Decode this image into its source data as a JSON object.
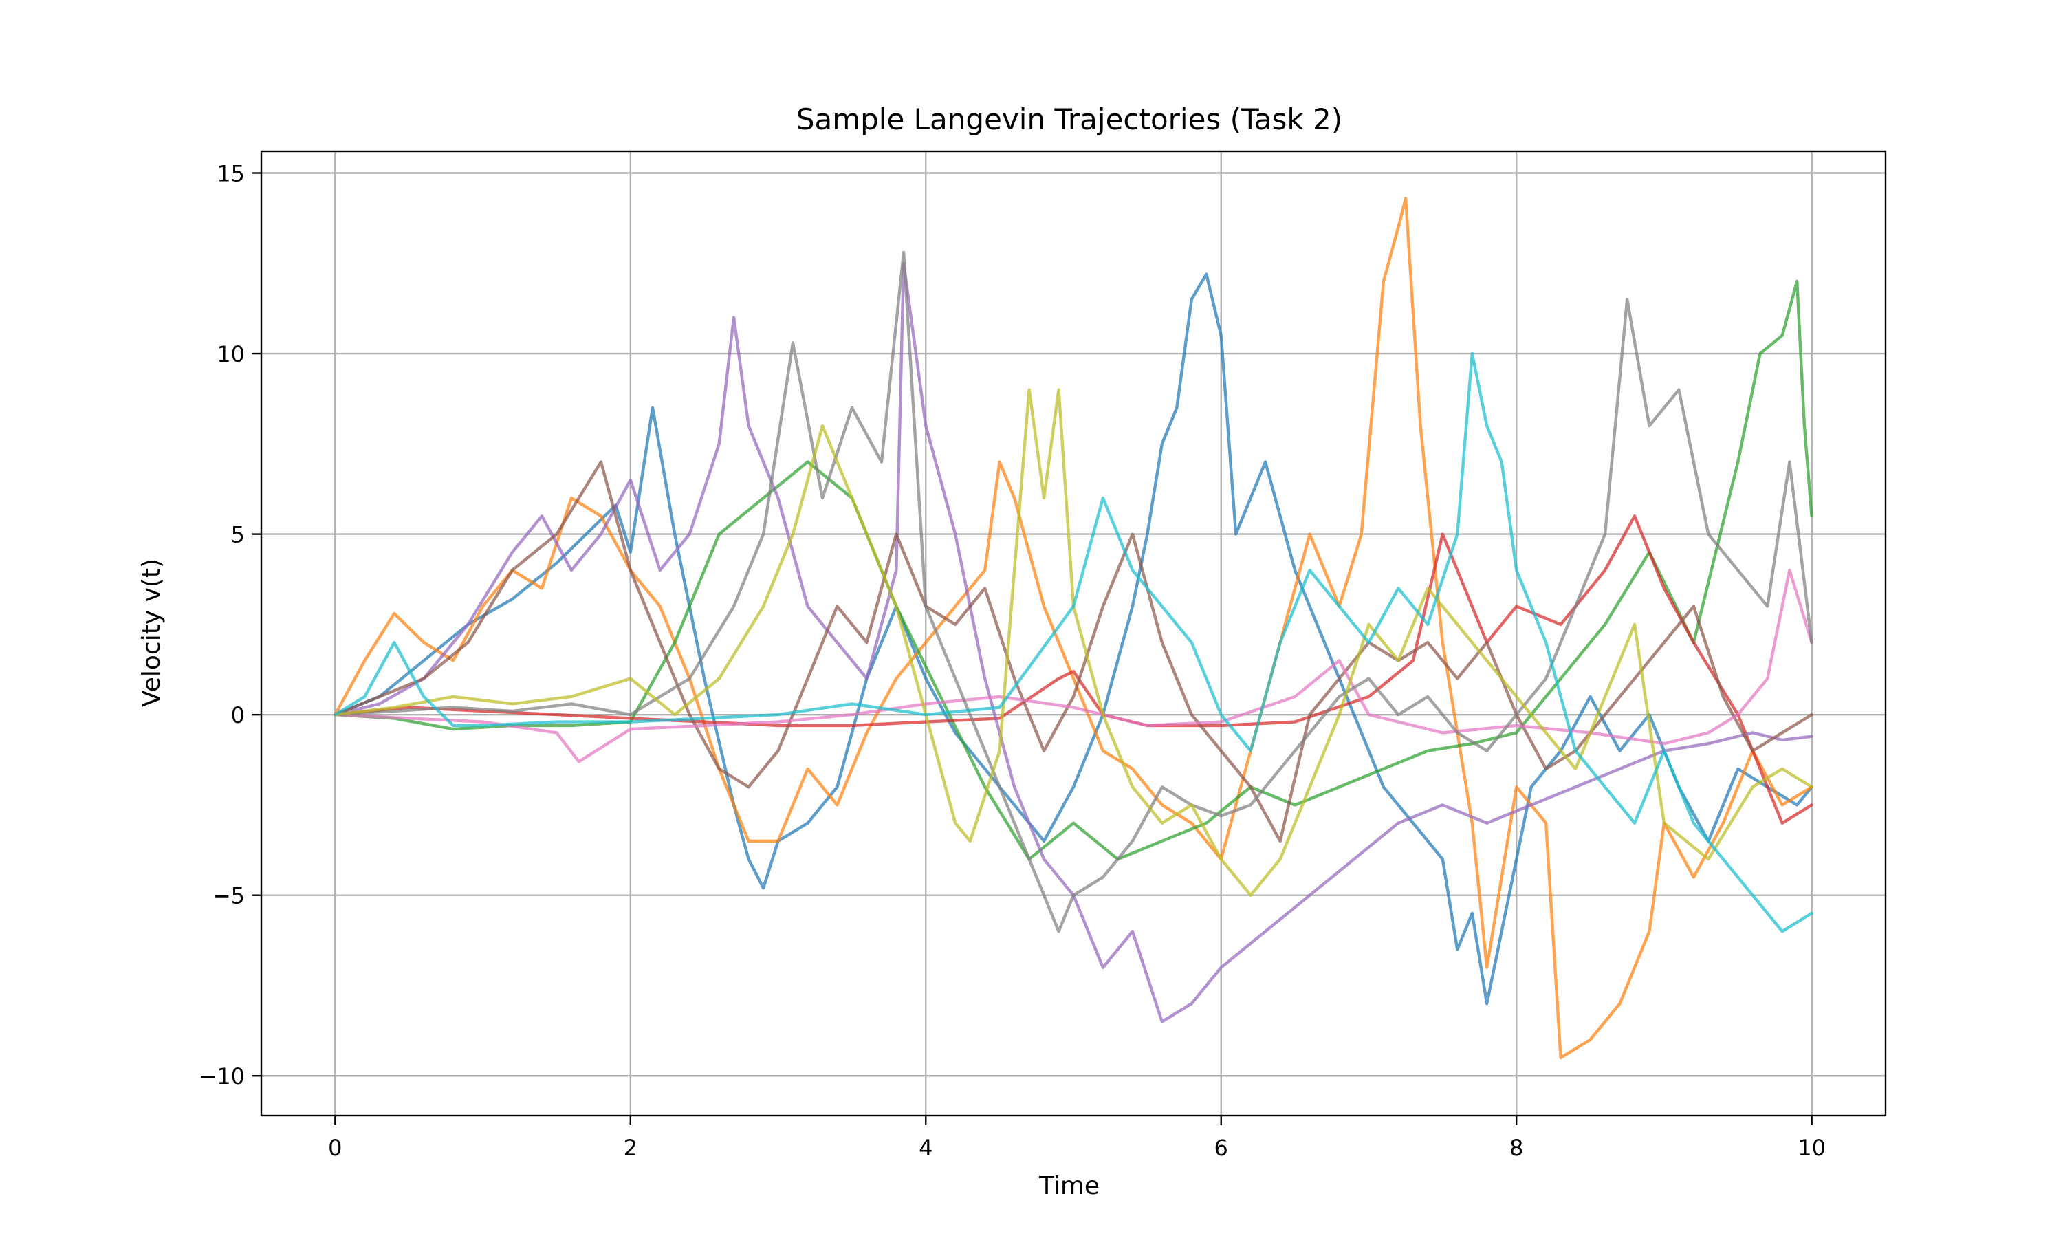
{
  "chart_data": {
    "type": "line",
    "title": "Sample Langevin Trajectories (Task 2)",
    "xlabel": "Time",
    "ylabel": "Velocity v(t)",
    "xlim": [
      -0.5,
      10.5
    ],
    "ylim": [
      -11.1,
      15.6
    ],
    "xticks": [
      0,
      2,
      4,
      6,
      8,
      10
    ],
    "yticks": [
      -10,
      -5,
      0,
      5,
      10,
      15
    ],
    "xtick_labels": [
      "0",
      "2",
      "4",
      "6",
      "8",
      "10"
    ],
    "ytick_labels": [
      "−10",
      "−5",
      "0",
      "5",
      "10",
      "15"
    ],
    "grid": true,
    "legend": false,
    "series": [
      {
        "color": "#1f77b4",
        "x": [
          0,
          0.3,
          0.6,
          0.9,
          1.2,
          1.5,
          1.7,
          1.9,
          2.0,
          2.15,
          2.3,
          2.5,
          2.7,
          2.8,
          2.9,
          3.0,
          3.2,
          3.4,
          3.6,
          3.8,
          4.0,
          4.2,
          4.4,
          4.6,
          4.8,
          5.0,
          5.2,
          5.4,
          5.5,
          5.6,
          5.7,
          5.8,
          5.9,
          6.0,
          6.1,
          6.3,
          6.5,
          6.7,
          6.9,
          7.1,
          7.3,
          7.5,
          7.6,
          7.7,
          7.8,
          7.9,
          8.0,
          8.1,
          8.3,
          8.5,
          8.7,
          8.9,
          9.1,
          9.3,
          9.5,
          9.7,
          9.9,
          10.0
        ],
        "y": [
          0,
          0.5,
          1.5,
          2.5,
          3.2,
          4.2,
          5.0,
          5.8,
          4.5,
          8.5,
          5.0,
          1.0,
          -2.5,
          -4.0,
          -4.8,
          -3.5,
          -3.0,
          -2.0,
          1.0,
          3.0,
          1.0,
          -0.5,
          -1.5,
          -2.5,
          -3.5,
          -2.0,
          0.0,
          3.0,
          5.0,
          7.5,
          8.5,
          11.5,
          12.2,
          10.5,
          5.0,
          7.0,
          4.0,
          2.0,
          0.0,
          -2.0,
          -3.0,
          -4.0,
          -6.5,
          -5.5,
          -8.0,
          -6.0,
          -4.0,
          -2.0,
          -1.0,
          0.5,
          -1.0,
          0.0,
          -2.0,
          -3.5,
          -1.5,
          -2.0,
          -2.5,
          -2.0
        ]
      },
      {
        "color": "#ff7f0e",
        "x": [
          0,
          0.2,
          0.4,
          0.6,
          0.8,
          1.0,
          1.2,
          1.4,
          1.6,
          1.8,
          2.0,
          2.2,
          2.4,
          2.6,
          2.8,
          3.0,
          3.2,
          3.4,
          3.6,
          3.8,
          4.0,
          4.2,
          4.4,
          4.5,
          4.6,
          4.8,
          5.0,
          5.2,
          5.4,
          5.6,
          5.8,
          6.0,
          6.2,
          6.4,
          6.6,
          6.8,
          6.95,
          7.1,
          7.2,
          7.25,
          7.35,
          7.5,
          7.7,
          7.8,
          8.0,
          8.2,
          8.3,
          8.5,
          8.7,
          8.9,
          9.0,
          9.2,
          9.4,
          9.6,
          9.8,
          10.0
        ],
        "y": [
          0,
          1.5,
          2.8,
          2.0,
          1.5,
          3.0,
          4.0,
          3.5,
          6.0,
          5.5,
          4.0,
          3.0,
          1.0,
          -1.5,
          -3.5,
          -3.5,
          -1.5,
          -2.5,
          -0.5,
          1.0,
          2.0,
          3.0,
          4.0,
          7.0,
          6.0,
          3.0,
          1.0,
          -1.0,
          -1.5,
          -2.5,
          -3.0,
          -4.0,
          -1.0,
          2.0,
          5.0,
          3.0,
          5.0,
          12.0,
          13.5,
          14.3,
          8.0,
          2.0,
          -3.0,
          -7.0,
          -2.0,
          -3.0,
          -9.5,
          -9.0,
          -8.0,
          -6.0,
          -3.0,
          -4.5,
          -3.0,
          -1.0,
          -2.5,
          -2.0
        ]
      },
      {
        "color": "#2ca02c",
        "x": [
          0,
          0.4,
          0.8,
          1.2,
          1.6,
          2.0,
          2.3,
          2.6,
          2.9,
          3.2,
          3.5,
          3.8,
          4.1,
          4.4,
          4.7,
          5.0,
          5.3,
          5.6,
          5.9,
          6.2,
          6.5,
          6.8,
          7.1,
          7.4,
          7.7,
          8.0,
          8.3,
          8.6,
          8.9,
          9.2,
          9.5,
          9.65,
          9.8,
          9.9,
          9.95,
          10.0
        ],
        "y": [
          0,
          -0.1,
          -0.4,
          -0.3,
          -0.3,
          -0.2,
          2.0,
          5.0,
          6.0,
          7.0,
          6.0,
          3.0,
          0.5,
          -2.0,
          -4.0,
          -3.0,
          -4.0,
          -3.5,
          -3.0,
          -2.0,
          -2.5,
          -2.0,
          -1.5,
          -1.0,
          -0.8,
          -0.5,
          1.0,
          2.5,
          4.5,
          2.0,
          7.0,
          10.0,
          10.5,
          12.0,
          8.0,
          5.5
        ]
      },
      {
        "color": "#d62728",
        "x": [
          0,
          0.5,
          1.0,
          1.5,
          2.0,
          2.5,
          3.0,
          3.5,
          4.0,
          4.5,
          4.9,
          5.0,
          5.2,
          5.5,
          6.0,
          6.5,
          7.0,
          7.3,
          7.5,
          7.8,
          8.0,
          8.3,
          8.6,
          8.8,
          9.0,
          9.2,
          9.5,
          9.8,
          10.0
        ],
        "y": [
          0,
          0.2,
          0.1,
          0.0,
          -0.1,
          -0.2,
          -0.3,
          -0.3,
          -0.2,
          -0.1,
          1.0,
          1.2,
          0.0,
          -0.3,
          -0.3,
          -0.2,
          0.5,
          1.5,
          5.0,
          2.0,
          3.0,
          2.5,
          4.0,
          5.5,
          3.5,
          2.0,
          0.0,
          -3.0,
          -2.5
        ]
      },
      {
        "color": "#9467bd",
        "x": [
          0,
          0.3,
          0.6,
          0.9,
          1.2,
          1.4,
          1.6,
          1.8,
          2.0,
          2.2,
          2.4,
          2.6,
          2.7,
          2.8,
          3.0,
          3.2,
          3.4,
          3.6,
          3.8,
          3.85,
          4.0,
          4.2,
          4.4,
          4.6,
          4.8,
          5.0,
          5.2,
          5.4,
          5.6,
          5.8,
          6.0,
          6.3,
          6.6,
          6.9,
          7.2,
          7.5,
          7.8,
          8.1,
          8.4,
          8.7,
          9.0,
          9.3,
          9.6,
          9.8,
          10.0
        ],
        "y": [
          0,
          0.3,
          1.0,
          2.5,
          4.5,
          5.5,
          4.0,
          5.0,
          6.5,
          4.0,
          5.0,
          7.5,
          11.0,
          8.0,
          6.0,
          3.0,
          2.0,
          1.0,
          4.0,
          12.5,
          8.0,
          5.0,
          1.0,
          -2.0,
          -4.0,
          -5.0,
          -7.0,
          -6.0,
          -8.5,
          -8.0,
          -7.0,
          -6.0,
          -5.0,
          -4.0,
          -3.0,
          -2.5,
          -3.0,
          -2.5,
          -2.0,
          -1.5,
          -1.0,
          -0.8,
          -0.5,
          -0.7,
          -0.6
        ]
      },
      {
        "color": "#8c564b",
        "x": [
          0,
          0.3,
          0.6,
          0.9,
          1.2,
          1.5,
          1.8,
          2.0,
          2.2,
          2.4,
          2.6,
          2.8,
          3.0,
          3.2,
          3.4,
          3.6,
          3.8,
          4.0,
          4.2,
          4.4,
          4.6,
          4.8,
          5.0,
          5.2,
          5.4,
          5.6,
          5.8,
          6.0,
          6.2,
          6.4,
          6.6,
          6.8,
          7.0,
          7.2,
          7.4,
          7.6,
          7.8,
          8.0,
          8.2,
          8.4,
          8.6,
          8.8,
          9.0,
          9.2,
          9.4,
          9.6,
          9.8,
          10.0
        ],
        "y": [
          0,
          0.5,
          1.0,
          2.0,
          4.0,
          5.0,
          7.0,
          4.0,
          2.0,
          0.0,
          -1.5,
          -2.0,
          -1.0,
          1.0,
          3.0,
          2.0,
          5.0,
          3.0,
          2.5,
          3.5,
          1.0,
          -1.0,
          0.5,
          3.0,
          5.0,
          2.0,
          0.0,
          -1.0,
          -2.0,
          -3.5,
          0.0,
          1.0,
          2.0,
          1.5,
          2.0,
          1.0,
          2.0,
          0.0,
          -1.5,
          -1.0,
          0.0,
          1.0,
          2.0,
          3.0,
          0.5,
          -1.0,
          -0.5,
          0.0
        ]
      },
      {
        "color": "#e377c2",
        "x": [
          0,
          0.5,
          1.0,
          1.5,
          1.65,
          2.0,
          2.5,
          3.0,
          3.5,
          4.0,
          4.5,
          5.0,
          5.5,
          6.0,
          6.5,
          6.8,
          7.0,
          7.5,
          8.0,
          8.5,
          9.0,
          9.3,
          9.5,
          9.7,
          9.85,
          10.0
        ],
        "y": [
          0,
          -0.1,
          -0.2,
          -0.5,
          -1.3,
          -0.4,
          -0.3,
          -0.2,
          0.0,
          0.3,
          0.5,
          0.2,
          -0.3,
          -0.2,
          0.5,
          1.5,
          0.0,
          -0.5,
          -0.3,
          -0.5,
          -0.8,
          -0.5,
          0.0,
          1.0,
          4.0,
          2.0
        ]
      },
      {
        "color": "#7f7f7f",
        "x": [
          0,
          0.4,
          0.8,
          1.2,
          1.6,
          2.0,
          2.4,
          2.7,
          2.9,
          3.1,
          3.3,
          3.5,
          3.7,
          3.85,
          4.0,
          4.2,
          4.4,
          4.6,
          4.8,
          4.9,
          5.0,
          5.2,
          5.4,
          5.6,
          5.8,
          6.0,
          6.2,
          6.4,
          6.6,
          6.8,
          7.0,
          7.2,
          7.4,
          7.6,
          7.8,
          8.0,
          8.2,
          8.4,
          8.6,
          8.75,
          8.9,
          9.1,
          9.3,
          9.5,
          9.7,
          9.85,
          10.0
        ],
        "y": [
          0,
          0.1,
          0.2,
          0.1,
          0.3,
          0.0,
          1.0,
          3.0,
          5.0,
          10.3,
          6.0,
          8.5,
          7.0,
          12.8,
          3.0,
          1.0,
          -1.0,
          -3.0,
          -5.0,
          -6.0,
          -5.0,
          -4.5,
          -3.5,
          -2.0,
          -2.5,
          -2.8,
          -2.5,
          -1.5,
          -0.5,
          0.5,
          1.0,
          0.0,
          0.5,
          -0.5,
          -1.0,
          0.0,
          1.0,
          3.0,
          5.0,
          11.5,
          8.0,
          9.0,
          5.0,
          4.0,
          3.0,
          7.0,
          2.0
        ]
      },
      {
        "color": "#bcbd22",
        "x": [
          0,
          0.4,
          0.8,
          1.2,
          1.6,
          2.0,
          2.3,
          2.6,
          2.9,
          3.1,
          3.3,
          3.5,
          3.8,
          4.0,
          4.2,
          4.3,
          4.5,
          4.7,
          4.8,
          4.9,
          5.0,
          5.2,
          5.4,
          5.6,
          5.8,
          6.0,
          6.2,
          6.4,
          6.6,
          6.8,
          7.0,
          7.2,
          7.4,
          7.6,
          7.8,
          8.0,
          8.2,
          8.4,
          8.6,
          8.8,
          9.0,
          9.3,
          9.6,
          9.8,
          10.0
        ],
        "y": [
          0,
          0.2,
          0.5,
          0.3,
          0.5,
          1.0,
          0.0,
          1.0,
          3.0,
          5.0,
          8.0,
          6.0,
          3.0,
          0.0,
          -3.0,
          -3.5,
          -1.0,
          9.0,
          6.0,
          9.0,
          3.0,
          0.0,
          -2.0,
          -3.0,
          -2.5,
          -4.0,
          -5.0,
          -4.0,
          -2.0,
          0.0,
          2.5,
          1.5,
          3.5,
          2.5,
          1.5,
          0.5,
          -0.5,
          -1.5,
          0.5,
          2.5,
          -3.0,
          -4.0,
          -2.0,
          -1.5,
          -2.0
        ]
      },
      {
        "color": "#17becf",
        "x": [
          0,
          0.2,
          0.4,
          0.6,
          0.8,
          1.0,
          1.5,
          2.0,
          2.5,
          3.0,
          3.5,
          4.0,
          4.5,
          5.0,
          5.2,
          5.4,
          5.6,
          5.8,
          6.0,
          6.2,
          6.4,
          6.6,
          6.8,
          7.0,
          7.2,
          7.4,
          7.6,
          7.7,
          7.8,
          7.9,
          8.0,
          8.2,
          8.4,
          8.6,
          8.8,
          9.0,
          9.2,
          9.4,
          9.6,
          9.8,
          10.0
        ],
        "y": [
          0,
          0.5,
          2.0,
          0.5,
          -0.3,
          -0.3,
          -0.2,
          -0.2,
          -0.1,
          0.0,
          0.3,
          0.0,
          0.2,
          3.0,
          6.0,
          4.0,
          3.0,
          2.0,
          0.0,
          -1.0,
          2.0,
          4.0,
          3.0,
          2.0,
          3.5,
          2.5,
          5.0,
          10.0,
          8.0,
          7.0,
          4.0,
          2.0,
          -1.0,
          -2.0,
          -3.0,
          -1.0,
          -3.0,
          -4.0,
          -5.0,
          -6.0,
          -5.5
        ]
      }
    ]
  }
}
